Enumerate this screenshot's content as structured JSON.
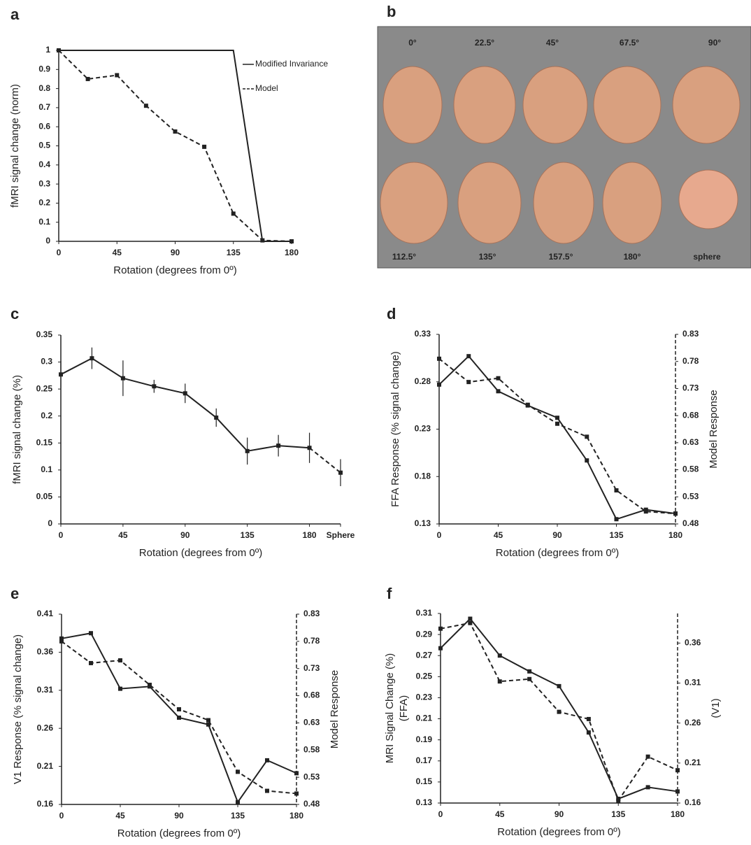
{
  "chart_data": [
    {
      "type": "line",
      "panel": "a",
      "xlabel": "Rotation (degrees  from 0º)",
      "ylabel": "fMRI signal change  (norm)",
      "x": [
        0,
        22.5,
        45,
        67.5,
        90,
        112.5,
        135,
        157.5,
        180
      ],
      "xlim": [
        0,
        180
      ],
      "xticks": [
        0,
        45,
        90,
        135,
        180
      ],
      "ylim": [
        0,
        1
      ],
      "yticks": [
        0,
        0.1,
        0.2,
        0.3,
        0.4,
        0.5,
        0.6,
        0.7,
        0.8,
        0.9,
        1
      ],
      "legend": "upper right",
      "series": [
        {
          "name": "Modified Invariance",
          "color": "#222222",
          "style": "solid",
          "markers": false,
          "x": [
            0,
            135,
            157.5,
            180
          ],
          "values": [
            1,
            1,
            0,
            0
          ]
        },
        {
          "name": "Model",
          "color": "#222222",
          "style": "dashed",
          "markers": true,
          "values": [
            1,
            0.85,
            0.87,
            0.71,
            0.575,
            0.495,
            0.145,
            0.005,
            0
          ]
        }
      ]
    },
    {
      "type": "line",
      "panel": "c",
      "xlabel": "Rotation (degrees  from 0º)",
      "ylabel": "fMRI signal change (%)",
      "x": [
        0,
        22.5,
        45,
        67.5,
        90,
        112.5,
        135,
        157.5,
        180,
        202.5
      ],
      "xlim": [
        0,
        202.5
      ],
      "xticks": [
        0,
        45,
        90,
        135,
        180,
        {
          "value": 202.5,
          "label": "Sphere"
        }
      ],
      "ylim": [
        0,
        0.35
      ],
      "yticks": [
        0,
        0.05,
        0.1,
        0.15,
        0.2,
        0.25,
        0.3,
        0.35
      ],
      "dash_last_segment": true,
      "series": [
        {
          "color": "#222222",
          "style": "solid",
          "markers": true,
          "values": [
            0.277,
            0.307,
            0.27,
            0.255,
            0.242,
            0.197,
            0.135,
            0.145,
            0.141,
            0.095
          ],
          "errors": [
            0.025,
            0.02,
            0.033,
            0.012,
            0.018,
            0.017,
            0.025,
            0.02,
            0.028,
            0.025
          ]
        }
      ]
    },
    {
      "type": "line",
      "panel": "d",
      "xlabel": "Rotation (degrees  from 0º)",
      "ylabel": "FFA Response (% signal change)",
      "y2label": "Model Response",
      "x": [
        0,
        22.5,
        45,
        67.5,
        90,
        112.5,
        135,
        157.5,
        180
      ],
      "xlim": [
        0,
        180
      ],
      "xticks": [
        0,
        45,
        90,
        135,
        180
      ],
      "ylim": [
        0.13,
        0.33
      ],
      "yticks": [
        0.13,
        0.18,
        0.23,
        0.28,
        0.33
      ],
      "y2lim": [
        0.48,
        0.83
      ],
      "y2ticks": [
        0.48,
        0.53,
        0.58,
        0.63,
        0.68,
        0.73,
        0.78,
        0.83
      ],
      "series": [
        {
          "color": "#222222",
          "style": "solid",
          "markers": true,
          "values": [
            0.277,
            0.307,
            0.27,
            0.255,
            0.242,
            0.197,
            0.135,
            0.145,
            0.141
          ]
        },
        {
          "color": "#222222",
          "style": "dashed",
          "markers": true,
          "axis": "y2",
          "values": [
            0.785,
            0.742,
            0.749,
            0.7,
            0.665,
            0.641,
            0.542,
            0.503,
            0.499
          ]
        }
      ]
    },
    {
      "type": "line",
      "panel": "e",
      "xlabel": "Rotation (degrees  from 0º)",
      "ylabel": "V1 Response (% signal change)",
      "y2label": "Model Response",
      "x": [
        0,
        22.5,
        45,
        67.5,
        90,
        112.5,
        135,
        157.5,
        180
      ],
      "xlim": [
        0,
        180
      ],
      "xticks": [
        0,
        45,
        90,
        135,
        180
      ],
      "ylim": [
        0.16,
        0.41
      ],
      "yticks": [
        0.16,
        0.21,
        0.26,
        0.31,
        0.36,
        0.41
      ],
      "y2lim": [
        0.48,
        0.83
      ],
      "y2ticks": [
        0.48,
        0.53,
        0.58,
        0.63,
        0.68,
        0.73,
        0.78,
        0.83
      ],
      "series": [
        {
          "color": "#222222",
          "style": "solid",
          "markers": true,
          "values": [
            0.378,
            0.385,
            0.312,
            0.315,
            0.274,
            0.265,
            0.163,
            0.218,
            0.201
          ]
        },
        {
          "color": "#222222",
          "style": "dashed",
          "markers": true,
          "axis": "y2",
          "values": [
            0.78,
            0.74,
            0.745,
            0.7,
            0.655,
            0.635,
            0.54,
            0.505,
            0.5
          ]
        }
      ]
    },
    {
      "type": "line",
      "panel": "f",
      "xlabel": "Rotation (degrees  from 0º)",
      "ylabel": [
        "MRI Signal Change (%)",
        "(FFA)"
      ],
      "y2label": "(V1)",
      "x": [
        0,
        22.5,
        45,
        67.5,
        90,
        112.5,
        135,
        157.5,
        180
      ],
      "xlim": [
        0,
        180
      ],
      "xticks": [
        0,
        45,
        90,
        135,
        180
      ],
      "ylim": [
        0.13,
        0.31
      ],
      "yticks": [
        0.13,
        0.15,
        0.17,
        0.19,
        0.21,
        0.23,
        0.25,
        0.27,
        0.29,
        0.31
      ],
      "y2lim": [
        0.16,
        0.397
      ],
      "y2ticks": [
        0.16,
        0.21,
        0.26,
        0.31,
        0.36
      ],
      "series": [
        {
          "color": "#222222",
          "style": "solid",
          "markers": true,
          "values": [
            0.277,
            0.305,
            0.27,
            0.255,
            0.241,
            0.197,
            0.134,
            0.145,
            0.141
          ]
        },
        {
          "color": "#222222",
          "style": "dashed",
          "markers": true,
          "axis": "y2",
          "values": [
            0.378,
            0.385,
            0.312,
            0.315,
            0.274,
            0.265,
            0.163,
            0.218,
            0.201
          ]
        }
      ]
    }
  ],
  "panel_b": {
    "panel": "b",
    "top_labels": [
      "0°",
      "22.5°",
      "45°",
      "67.5°",
      "90°"
    ],
    "bottom_labels": [
      "112.5°",
      "135°",
      "157.5°",
      "180°",
      "sphere"
    ]
  }
}
